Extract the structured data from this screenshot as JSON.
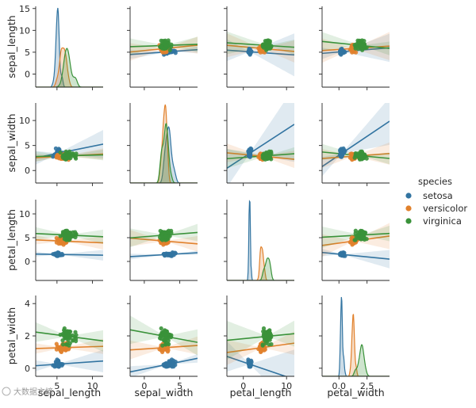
{
  "chart_data": {
    "type": "pairplot",
    "variables": [
      "sepal_length",
      "sepal_width",
      "petal_length",
      "petal_width"
    ],
    "axis_labels": [
      "sepal_length",
      "sepal_width",
      "petal_length",
      "petal_width"
    ],
    "row_ticks": [
      [
        "0",
        "5",
        "10",
        "15"
      ],
      [
        "0",
        "5",
        "10"
      ],
      [
        "0",
        "5",
        "10"
      ],
      [
        "0",
        "2",
        "4"
      ]
    ],
    "col_ticks": [
      [
        "5",
        "10"
      ],
      [
        "0",
        "5"
      ],
      [
        "0",
        "10"
      ],
      [
        "0.0",
        "2.5"
      ]
    ],
    "legend": {
      "title": "species",
      "placement": "right",
      "entries": [
        {
          "name": "setosa",
          "color": "#3274a1"
        },
        {
          "name": "versicolor",
          "color": "#e1812c"
        },
        {
          "name": "virginica",
          "color": "#3a923a"
        }
      ]
    },
    "species_stats": {
      "setosa": {
        "sepal_length": [
          4.3,
          5.0,
          5.8
        ],
        "sepal_width": [
          2.3,
          3.4,
          4.4
        ],
        "petal_length": [
          1.0,
          1.5,
          1.9
        ],
        "petal_width": [
          0.1,
          0.25,
          0.6
        ]
      },
      "versicolor": {
        "sepal_length": [
          4.9,
          5.9,
          7.0
        ],
        "sepal_width": [
          2.0,
          2.8,
          3.4
        ],
        "petal_length": [
          3.0,
          4.3,
          5.1
        ],
        "petal_width": [
          1.0,
          1.3,
          1.8
        ]
      },
      "virginica": {
        "sepal_length": [
          4.9,
          6.6,
          7.9
        ],
        "sepal_width": [
          2.2,
          3.0,
          3.8
        ],
        "petal_length": [
          4.5,
          5.6,
          6.9
        ],
        "petal_width": [
          1.4,
          2.0,
          2.5
        ]
      }
    }
  },
  "watermark": "大数据文摘"
}
